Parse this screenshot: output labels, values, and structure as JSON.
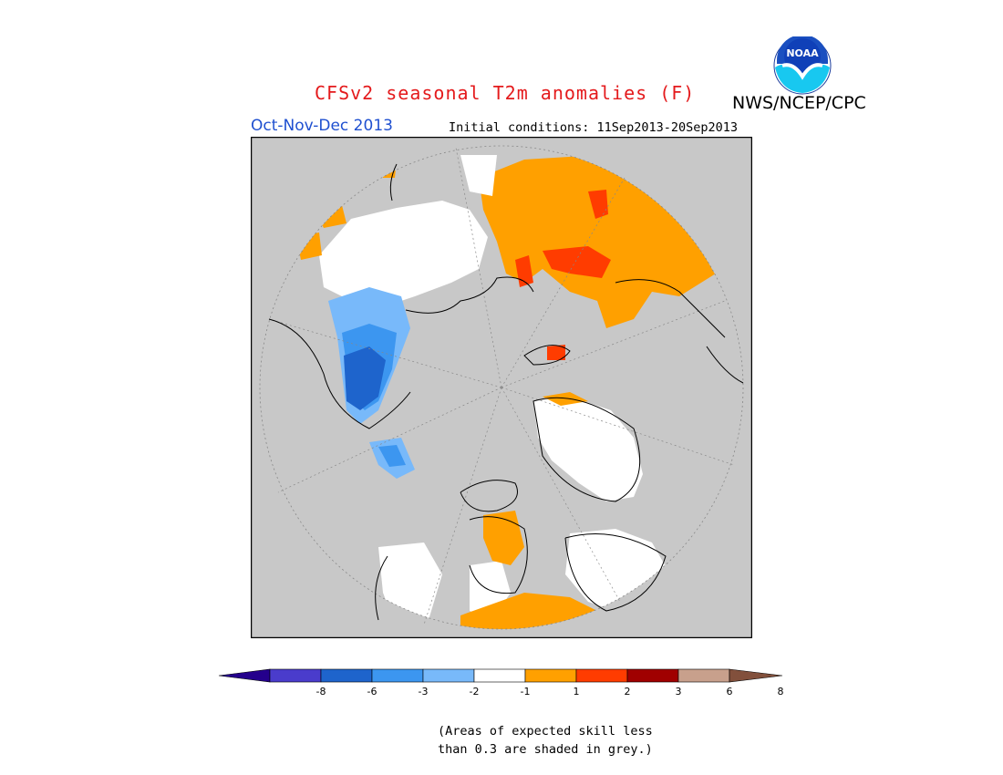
{
  "title": "CFSv2 seasonal T2m anomalies (F)",
  "agency": "NWS/NCEP/CPC",
  "logo_text": "NOAA",
  "season": "Oct-Nov-Dec 2013",
  "initial_conditions": "Initial conditions: 11Sep2013-20Sep2013",
  "colorbar": {
    "labels": [
      "-8",
      "-6",
      "-3",
      "-2",
      "-1",
      "1",
      "2",
      "3",
      "6",
      "8"
    ],
    "colors": [
      "#24008c",
      "#4a3ccc",
      "#1e64cc",
      "#3c96f0",
      "#78b9fa",
      "#ffffff",
      "#ffa000",
      "#ff3c00",
      "#a00000",
      "#c8a08c",
      "#82503c"
    ]
  },
  "note": {
    "line1": "(Areas of expected skill less",
    "line2": "than 0.3 are shaded in grey.)"
  },
  "colors": {
    "grey_mask": "#c8c8c8",
    "neutral": "#ffffff",
    "warm1": "#ffa000",
    "warm2": "#ff3c00",
    "warm3": "#a00000",
    "cool1": "#78b9fa",
    "cool2": "#3c96f0",
    "cool3": "#1e64cc"
  }
}
